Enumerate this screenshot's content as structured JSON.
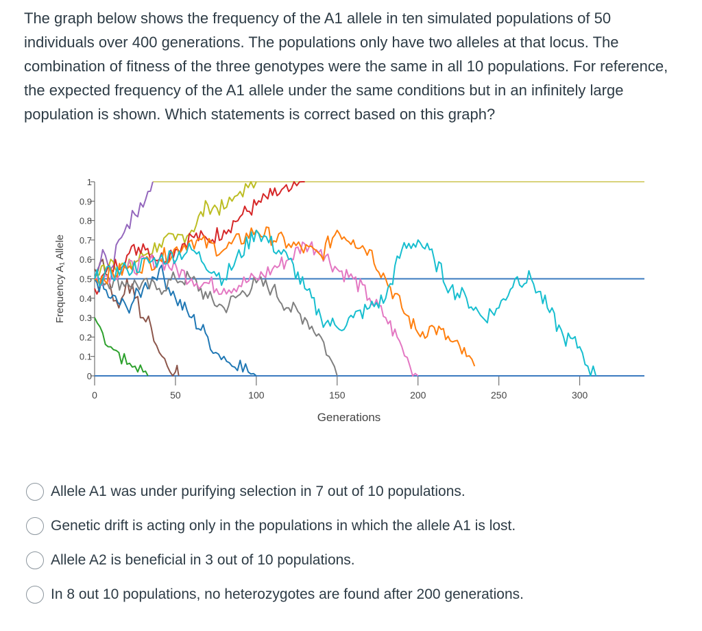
{
  "question": {
    "text": "The graph below shows the frequency of the A1 allele in ten simulated populations of 50 individuals over 400 generations. The populations only have two alleles at that locus. The combination of fitness of the three genotypes were the same in all 10 populations. For reference, the expected frequency of the A1 allele under the same conditions but in an infinitely large population is shown. Which statements is correct based on this graph?"
  },
  "answers": [
    {
      "label": "Allele A1 was under purifying selection in 7 out of 10 populations."
    },
    {
      "label": "Genetic drift is acting only in the populations in which the allele A1 is lost."
    },
    {
      "label": "Allele A2 is beneficial in 3 out of 10 populations."
    },
    {
      "label": "In 8 out 10 populations, no heterozygotes are found after 200 generations."
    }
  ],
  "chart_data": {
    "type": "line",
    "xlabel": "Generations",
    "ylabel": "Frequency A₁ Allele",
    "xlim": [
      0,
      340
    ],
    "ylim": [
      0,
      1
    ],
    "xticks": [
      0,
      50,
      100,
      150,
      200,
      250,
      300
    ],
    "yticks": [
      0,
      0.1,
      0.2,
      0.3,
      0.4,
      0.5,
      0.6,
      0.7,
      0.8,
      0.9,
      1
    ],
    "ytick_labels": [
      "0",
      "0.1",
      "0.2",
      "0.3",
      "0.4",
      "0.5",
      "0.6",
      "0.7",
      "0.8",
      "0.9",
      "1"
    ],
    "grid": false,
    "legend": "none",
    "reference_lines": [
      {
        "color": "#3a7abf",
        "y": 0.5,
        "from": 0,
        "to": 340
      },
      {
        "color": "#d8d27a",
        "y": 1.0,
        "from": 36,
        "to": 340
      },
      {
        "color": "#3a7abf",
        "y": 0.0,
        "from": 0,
        "to": 340
      }
    ],
    "series": [
      {
        "color": "#2ca02c",
        "x": [
          0,
          5,
          10,
          15,
          20,
          25,
          30,
          33
        ],
        "y": [
          0.3,
          0.22,
          0.15,
          0.12,
          0.06,
          0.05,
          0.02,
          0
        ]
      },
      {
        "color": "#8c564b",
        "x": [
          0,
          5,
          10,
          15,
          20,
          25,
          30,
          35,
          40,
          45,
          50,
          52
        ],
        "y": [
          0.55,
          0.6,
          0.45,
          0.35,
          0.5,
          0.4,
          0.3,
          0.25,
          0.12,
          0.05,
          0.02,
          0
        ]
      },
      {
        "color": "#9467bd",
        "x": [
          0,
          5,
          10,
          15,
          20,
          25,
          30,
          33,
          36
        ],
        "y": [
          0.5,
          0.65,
          0.55,
          0.7,
          0.78,
          0.83,
          0.87,
          0.95,
          1
        ]
      },
      {
        "color": "#bcbd22",
        "x": [
          0,
          10,
          20,
          30,
          40,
          50,
          60,
          70,
          80,
          85,
          90,
          95,
          100
        ],
        "y": [
          0.5,
          0.6,
          0.55,
          0.62,
          0.68,
          0.7,
          0.75,
          0.88,
          0.86,
          0.9,
          0.95,
          0.97,
          1
        ]
      },
      {
        "color": "#d62728",
        "x": [
          0,
          10,
          20,
          30,
          40,
          50,
          60,
          70,
          80,
          90,
          100,
          110,
          120,
          125,
          130
        ],
        "y": [
          0.45,
          0.55,
          0.62,
          0.68,
          0.6,
          0.65,
          0.72,
          0.7,
          0.75,
          0.82,
          0.88,
          0.93,
          0.95,
          0.98,
          1
        ]
      },
      {
        "color": "#1f77b4",
        "x": [
          0,
          10,
          20,
          30,
          40,
          50,
          60,
          70,
          75,
          80,
          85,
          90,
          95,
          100
        ],
        "y": [
          0.5,
          0.4,
          0.35,
          0.45,
          0.55,
          0.4,
          0.3,
          0.2,
          0.12,
          0.1,
          0.05,
          0.08,
          0.02,
          0
        ]
      },
      {
        "color": "#7f7f7f",
        "x": [
          0,
          20,
          40,
          50,
          60,
          70,
          80,
          90,
          100,
          110,
          120,
          130,
          140,
          145,
          150
        ],
        "y": [
          0.5,
          0.48,
          0.45,
          0.5,
          0.5,
          0.4,
          0.35,
          0.42,
          0.48,
          0.45,
          0.35,
          0.3,
          0.2,
          0.1,
          0
        ]
      },
      {
        "color": "#e377c2",
        "x": [
          0,
          20,
          40,
          60,
          80,
          100,
          110,
          120,
          130,
          140,
          150,
          160,
          170,
          180,
          190,
          195,
          200
        ],
        "y": [
          0.5,
          0.55,
          0.6,
          0.5,
          0.45,
          0.5,
          0.55,
          0.6,
          0.68,
          0.65,
          0.55,
          0.5,
          0.4,
          0.3,
          0.15,
          0.05,
          0
        ]
      },
      {
        "color": "#ff7f0e",
        "x": [
          0,
          20,
          40,
          60,
          80,
          100,
          120,
          140,
          150,
          160,
          170,
          180,
          190,
          200,
          210,
          220,
          230,
          235
        ],
        "y": [
          0.5,
          0.55,
          0.6,
          0.7,
          0.65,
          0.75,
          0.68,
          0.62,
          0.75,
          0.7,
          0.65,
          0.5,
          0.35,
          0.22,
          0.25,
          0.18,
          0.1,
          0.05
        ]
      },
      {
        "color": "#17becf",
        "x": [
          0,
          20,
          40,
          60,
          80,
          100,
          120,
          130,
          140,
          150,
          160,
          170,
          180,
          190,
          200,
          210,
          220,
          230,
          240,
          250,
          260,
          270,
          280,
          290,
          300,
          305,
          310
        ],
        "y": [
          0.5,
          0.55,
          0.6,
          0.65,
          0.5,
          0.75,
          0.6,
          0.45,
          0.3,
          0.25,
          0.3,
          0.35,
          0.4,
          0.65,
          0.7,
          0.6,
          0.45,
          0.4,
          0.3,
          0.35,
          0.5,
          0.5,
          0.35,
          0.2,
          0.15,
          0.05,
          0
        ]
      }
    ]
  }
}
